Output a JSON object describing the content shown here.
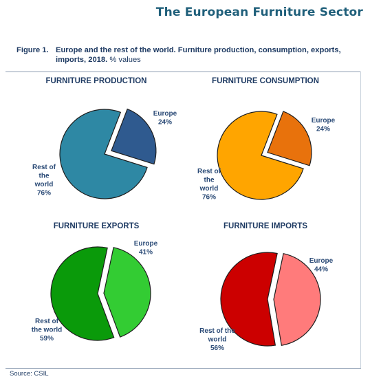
{
  "header": {
    "title": "The European Furniture Sector"
  },
  "figure": {
    "number": "Figure 1.",
    "caption_bold": "Europe and the rest of the world. Furniture production, consumption, exports, imports, 2018.",
    "caption_light": "% values",
    "source": "Source: CSIL"
  },
  "chart_data": [
    {
      "type": "pie",
      "title": "FURNITURE PRODUCTION",
      "labels": [
        "Europe",
        "Rest of the world"
      ],
      "values": [
        24,
        76
      ],
      "label_text": [
        [
          "Europe",
          "24%"
        ],
        [
          "Rest of",
          "the",
          "world",
          "76%"
        ]
      ],
      "colors": [
        "#2f5a8f",
        "#2e88a4"
      ],
      "exploded": "Europe"
    },
    {
      "type": "pie",
      "title": "FURNITURE CONSUMPTION",
      "labels": [
        "Europe",
        "Rest of the world"
      ],
      "values": [
        24,
        76
      ],
      "label_text": [
        [
          "Europe",
          "24%"
        ],
        [
          "Rest of",
          "the",
          "world",
          "76%"
        ]
      ],
      "colors": [
        "#e8720c",
        "#ffa500"
      ],
      "exploded": "Europe"
    },
    {
      "type": "pie",
      "title": "FURNITURE EXPORTS",
      "labels": [
        "Europe",
        "Rest of the world"
      ],
      "values": [
        41,
        59
      ],
      "label_text": [
        [
          "Europe",
          "41%"
        ],
        [
          "Rest of",
          "the world",
          "59%"
        ]
      ],
      "colors": [
        "#33cc33",
        "#0a9a0a"
      ],
      "exploded": "Europe"
    },
    {
      "type": "pie",
      "title": "FURNITURE IMPORTS",
      "labels": [
        "Europe",
        "Rest of the world"
      ],
      "values": [
        44,
        56
      ],
      "label_text": [
        [
          "Europe",
          "44%"
        ],
        [
          "Rest of the",
          "world",
          "56%"
        ]
      ],
      "colors": [
        "#ff7b7b",
        "#cc0000"
      ],
      "exploded": "Europe"
    }
  ]
}
